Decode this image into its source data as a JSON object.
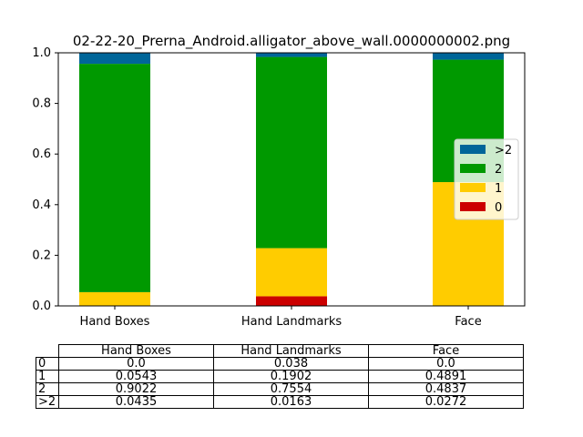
{
  "chart_data": {
    "type": "bar",
    "stacked": true,
    "title": "02-22-20_Prerna_Android.alligator_above_wall.0000000002.png",
    "categories": [
      "Hand Boxes",
      "Hand Landmarks",
      "Face"
    ],
    "ylim": [
      0,
      1
    ],
    "yticks": [
      "0.0",
      "0.2",
      "0.4",
      "0.6",
      "0.8",
      "1.0"
    ],
    "series": [
      {
        "name": "0",
        "color": "#cc0000",
        "values": [
          0.0,
          0.038,
          0.0
        ]
      },
      {
        "name": "1",
        "color": "#ffcc00",
        "values": [
          0.0543,
          0.1902,
          0.4891
        ]
      },
      {
        "name": "2",
        "color": "#009900",
        "values": [
          0.9022,
          0.7554,
          0.4837
        ]
      },
      {
        "name": ">2",
        "color": "#006699",
        "values": [
          0.0435,
          0.0163,
          0.0272
        ]
      }
    ],
    "legend_order": [
      ">2",
      "2",
      "1",
      "0"
    ],
    "legend_position": "center-right",
    "grid": false
  },
  "table": {
    "headers": [
      "Hand Boxes",
      "Hand Landmarks",
      "Face"
    ],
    "rows": [
      {
        "label": "0",
        "cells": [
          "0.0",
          "0.038",
          "0.0"
        ]
      },
      {
        "label": "1",
        "cells": [
          "0.0543",
          "0.1902",
          "0.4891"
        ]
      },
      {
        "label": "2",
        "cells": [
          "0.9022",
          "0.7554",
          "0.4837"
        ]
      },
      {
        "label": ">2",
        "cells": [
          "0.0435",
          "0.0163",
          "0.0272"
        ]
      }
    ]
  }
}
